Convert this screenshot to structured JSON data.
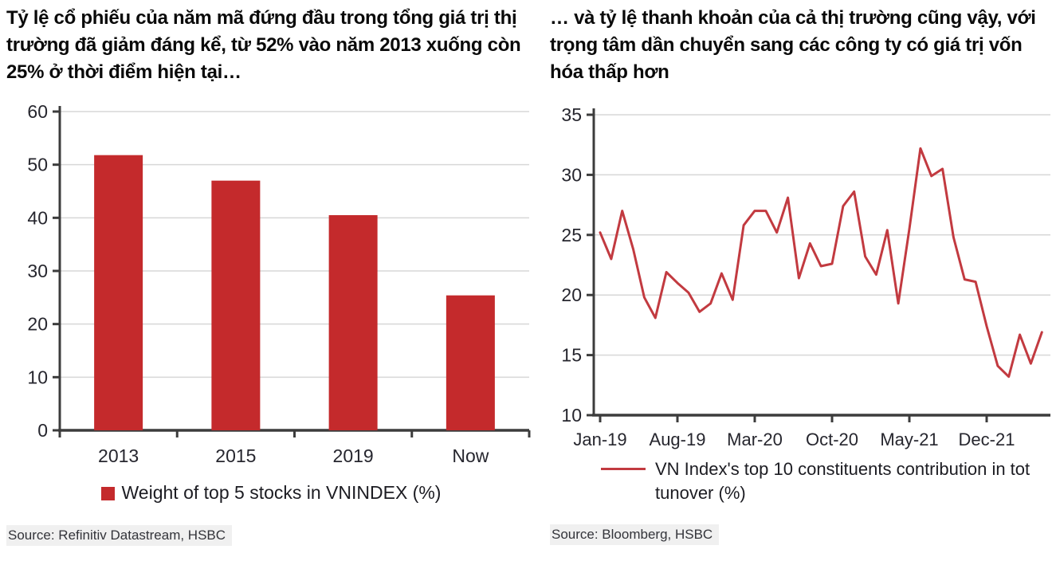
{
  "page": {
    "background": "#ffffff"
  },
  "chart_data": [
    {
      "id": "top5-weight-bar",
      "type": "bar",
      "title": "Tỷ lệ cổ phiếu của năm mã đứng đầu trong tổng giá trị thị trường đã giảm đáng kể, từ 52% vào năm 2013 xuống còn 25% ở thời điểm hiện tại…",
      "categories": [
        "2013",
        "2015",
        "2019",
        "Now"
      ],
      "values": [
        51.8,
        47.0,
        40.5,
        25.4
      ],
      "xlabel": "",
      "ylabel": "",
      "ylim": [
        0,
        60
      ],
      "yticks": [
        0,
        10,
        20,
        30,
        40,
        50,
        60
      ],
      "grid": true,
      "legend": "Weight of top 5 stocks in VNINDEX (%)",
      "legend_position": "bottom",
      "bar_color": "#c42a2c",
      "source": "Source: Refinitiv Datastream, HSBC"
    },
    {
      "id": "top10-turnover-line",
      "type": "line",
      "title": "… và tỷ lệ thanh khoản của cả thị trường cũng vậy, với trọng tâm dần chuyển sang các công ty có giá trị vốn hóa thấp hơn",
      "x": [
        "Jan-19",
        "Feb-19",
        "Mar-19",
        "Apr-19",
        "May-19",
        "Jun-19",
        "Jul-19",
        "Aug-19",
        "Sep-19",
        "Oct-19",
        "Nov-19",
        "Dec-19",
        "Jan-20",
        "Feb-20",
        "Mar-20",
        "Apr-20",
        "May-20",
        "Jun-20",
        "Jul-20",
        "Aug-20",
        "Sep-20",
        "Oct-20",
        "Nov-20",
        "Dec-20",
        "Jan-21",
        "Feb-21",
        "Mar-21",
        "Apr-21",
        "May-21",
        "Jun-21",
        "Jul-21",
        "Aug-21",
        "Sep-21",
        "Oct-21",
        "Nov-21",
        "Dec-21",
        "Jan-22",
        "Feb-22",
        "Mar-22",
        "Apr-22",
        "May-22"
      ],
      "values": [
        25.2,
        23.0,
        27.0,
        23.8,
        19.8,
        18.1,
        21.9,
        21.0,
        20.2,
        18.6,
        19.3,
        21.8,
        19.6,
        25.8,
        27.0,
        27.0,
        25.2,
        28.1,
        21.4,
        24.3,
        22.4,
        22.6,
        27.4,
        28.6,
        23.2,
        21.7,
        25.4,
        19.3,
        25.5,
        32.2,
        29.9,
        30.5,
        24.8,
        21.3,
        21.1,
        17.4,
        14.1,
        13.2,
        16.7,
        14.3,
        16.9
      ],
      "xticks_shown": [
        "Jan-19",
        "Aug-19",
        "Mar-20",
        "Oct-20",
        "May-21",
        "Dec-21"
      ],
      "xlabel": "",
      "ylabel": "",
      "ylim": [
        10,
        35
      ],
      "yticks": [
        10,
        15,
        20,
        25,
        30,
        35
      ],
      "grid": true,
      "legend": "VN Index's top 10 constituents contribution in tot tunover (%)",
      "legend_position": "bottom",
      "line_color": "#c23a40",
      "source": "Source: Bloomberg, HSBC"
    }
  ]
}
